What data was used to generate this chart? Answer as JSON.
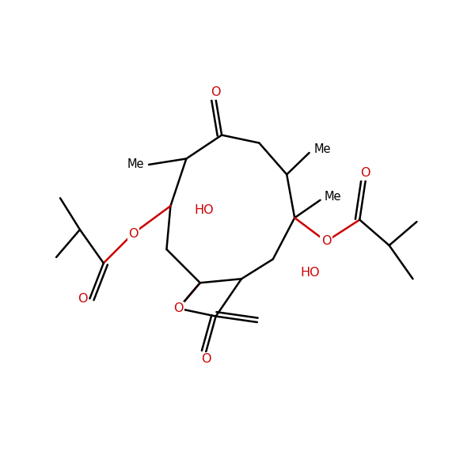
{
  "bg_color": "#ffffff",
  "bond_color": "#000000",
  "oxygen_color": "#cc0000",
  "line_width": 1.8,
  "font_size": 11.5,
  "figsize": [
    6.0,
    6.0
  ],
  "dpi": 100,
  "xlim": [
    -1,
    11
  ],
  "ylim": [
    -1,
    11
  ]
}
